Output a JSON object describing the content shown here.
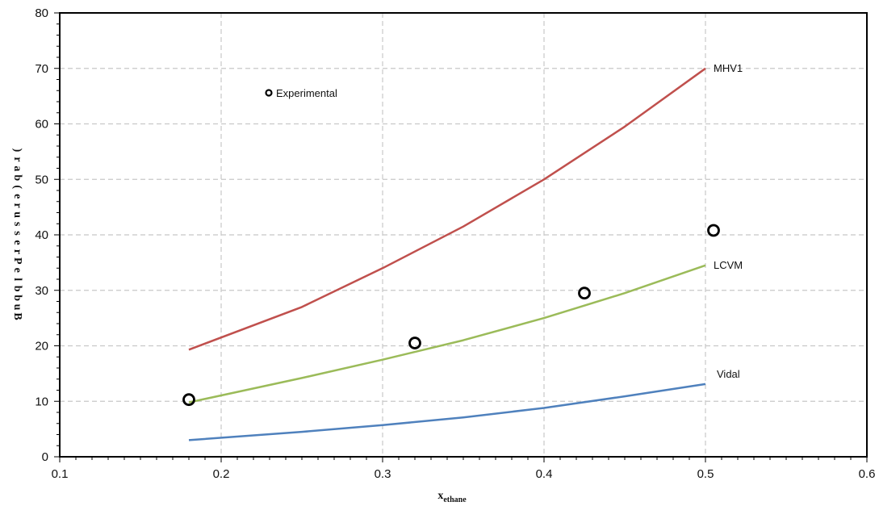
{
  "chart_data": {
    "type": "line",
    "xlabel": {
      "main": "x",
      "sub": "ethane"
    },
    "ylabel": "Bubble Pressure (bar)",
    "xlim": [
      0.1,
      0.6
    ],
    "ylim": [
      0,
      80
    ],
    "x_ticks": [
      "0.1",
      "0.2",
      "0.3",
      "0.4",
      "0.5",
      "0.6"
    ],
    "y_ticks": [
      "0",
      "10",
      "20",
      "30",
      "40",
      "50",
      "60",
      "70",
      "80"
    ],
    "grid": true,
    "legend": {
      "position": "top-left",
      "entries": [
        "Experimental"
      ]
    },
    "series": [
      {
        "name": "MHV1",
        "kind": "line",
        "color": "#c0504d",
        "x": [
          0.18,
          0.25,
          0.3,
          0.35,
          0.4,
          0.45,
          0.5
        ],
        "y": [
          19.3,
          27.0,
          34.0,
          41.5,
          50.0,
          59.5,
          70.0
        ]
      },
      {
        "name": "LCVM",
        "kind": "line",
        "color": "#9bbb59",
        "x": [
          0.18,
          0.25,
          0.3,
          0.35,
          0.4,
          0.45,
          0.5
        ],
        "y": [
          9.8,
          14.2,
          17.5,
          21.0,
          25.0,
          29.5,
          34.5
        ]
      },
      {
        "name": "Vidal",
        "kind": "line",
        "color": "#4f81bd",
        "x": [
          0.18,
          0.25,
          0.3,
          0.35,
          0.4,
          0.45,
          0.5
        ],
        "y": [
          3.0,
          4.5,
          5.7,
          7.1,
          8.8,
          10.9,
          13.1
        ]
      },
      {
        "name": "Experimental",
        "kind": "scatter",
        "color": "#000000",
        "x": [
          0.18,
          0.32,
          0.425,
          0.505
        ],
        "y": [
          10.3,
          20.5,
          29.5,
          40.8
        ]
      }
    ]
  }
}
